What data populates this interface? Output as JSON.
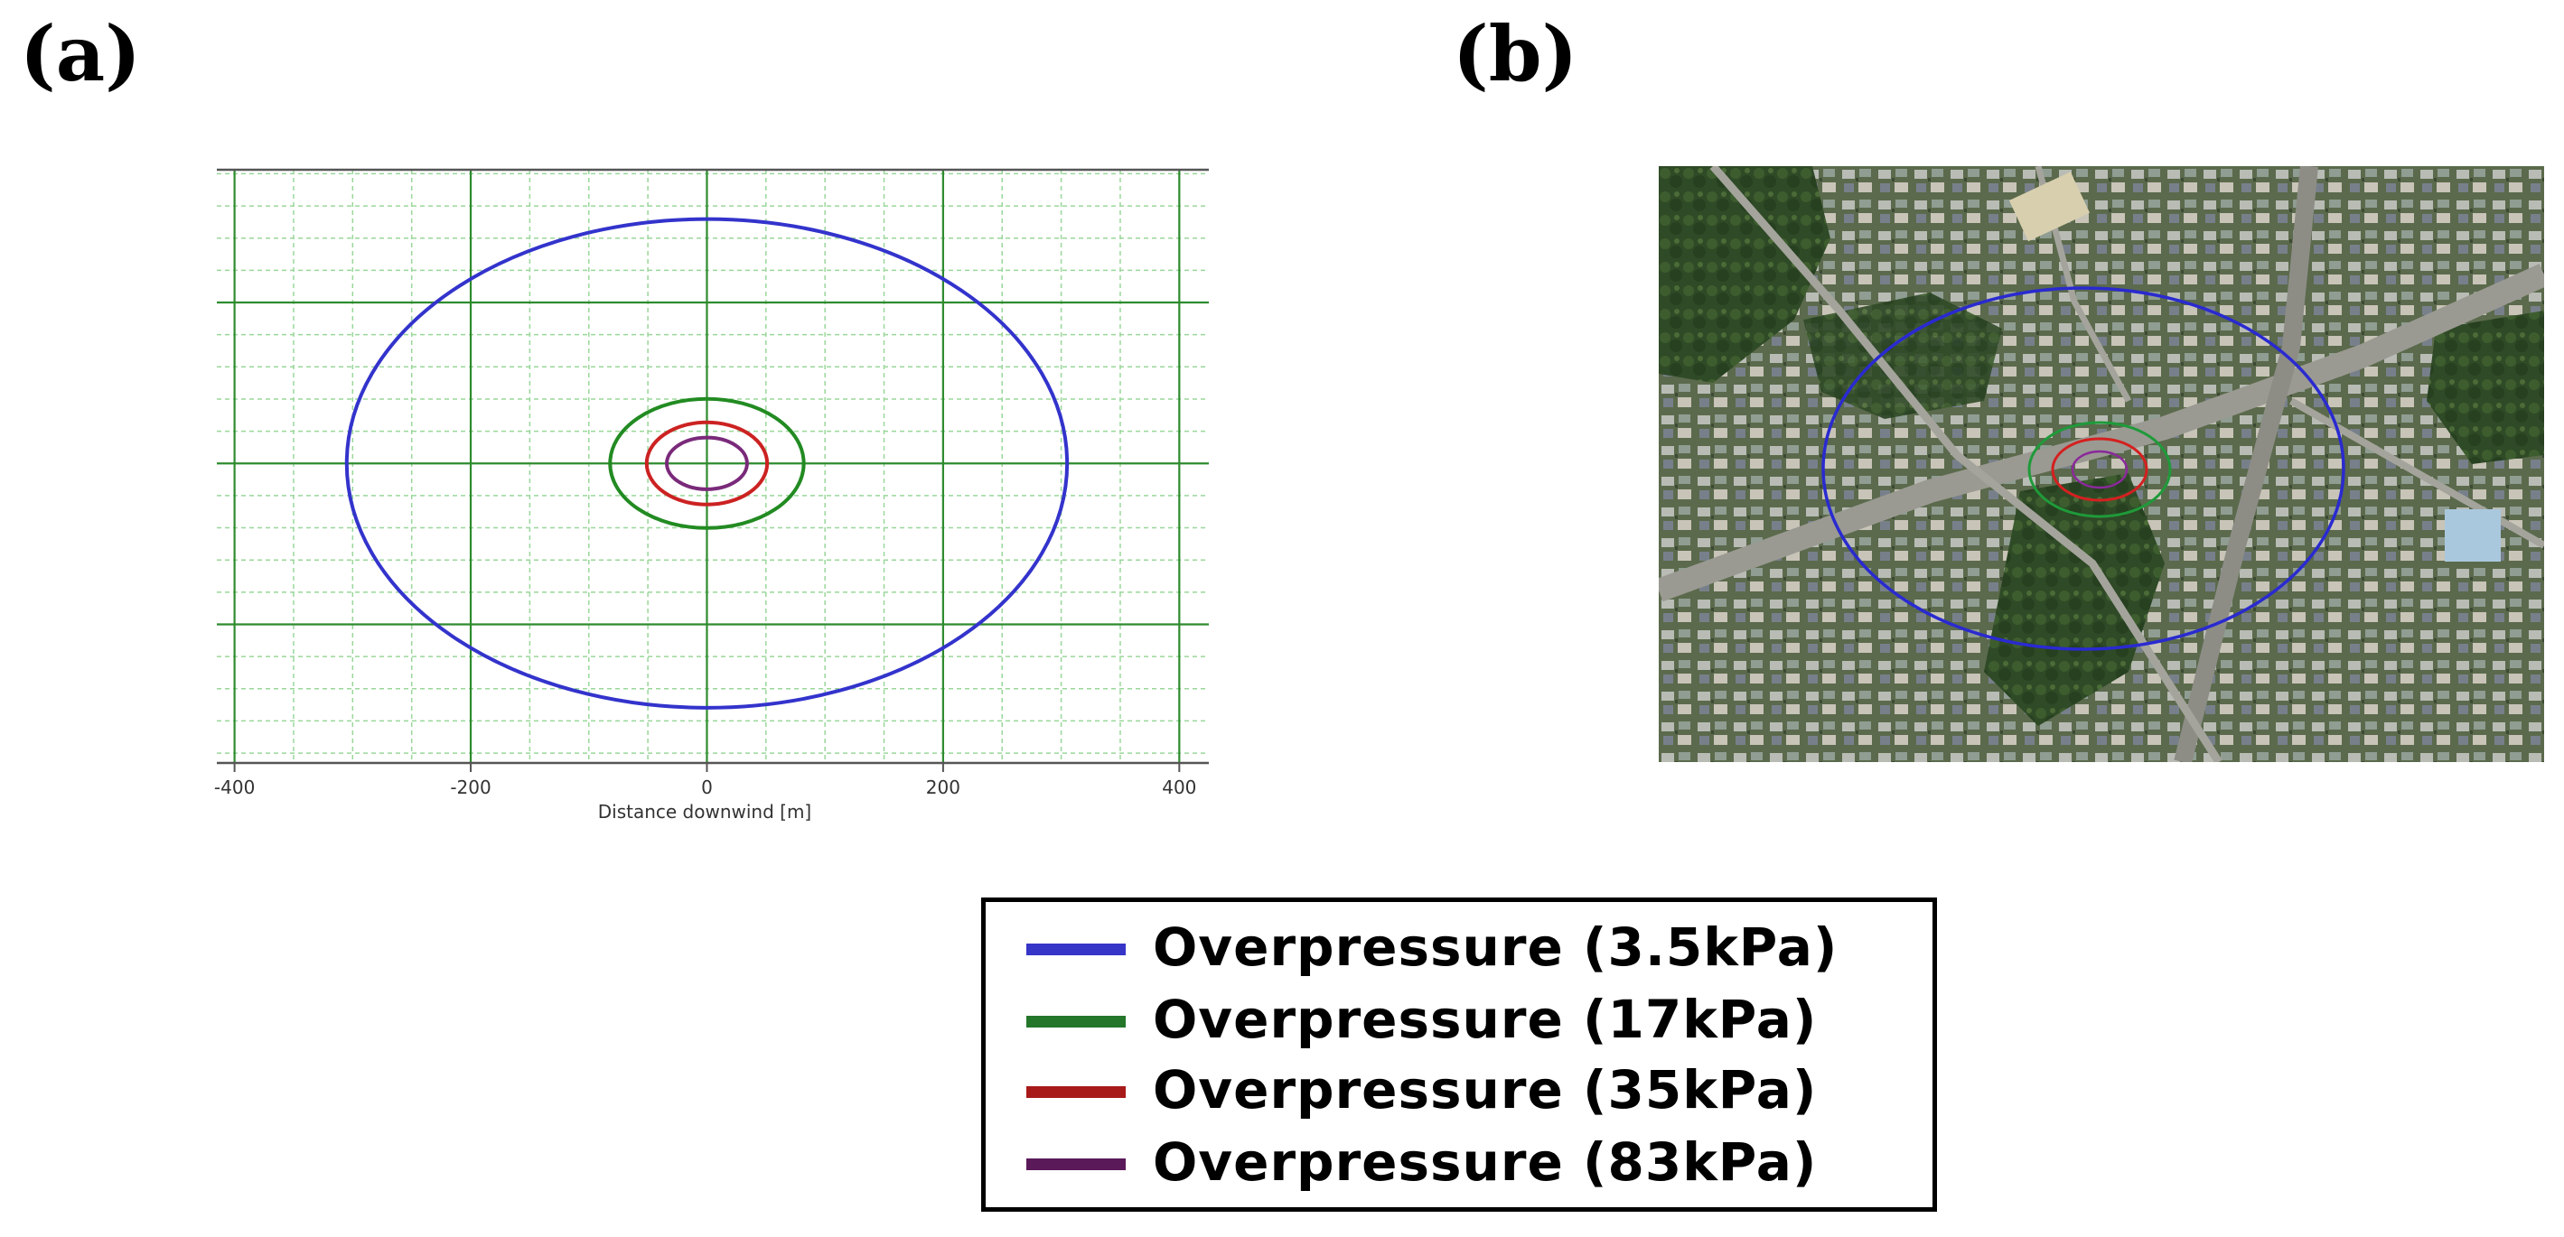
{
  "panel_labels": {
    "a": "(a)",
    "b": "(b)"
  },
  "chart_data": [
    {
      "type": "scatter",
      "panel": "(a)",
      "subtype": "concentric overpressure contours",
      "xlabel": "Distance downwind [m]",
      "ylabel": "",
      "xlim": [
        -415,
        425
      ],
      "ylim": [
        -255,
        250
      ],
      "x_ticks": [
        -400,
        -200,
        0,
        200,
        400
      ],
      "x_tick_labels": [
        "-400",
        "-200",
        "0",
        "200",
        "400"
      ],
      "major_grid_x": [
        -400,
        -200,
        0,
        200,
        400
      ],
      "major_grid_y": [
        -137,
        0,
        137
      ],
      "minor_grid_step": 50,
      "grid": true,
      "series": [
        {
          "name": "Overpressure (3.5kPa)",
          "color": "#3333cc",
          "center": [
            0,
            0
          ],
          "radius_x": 305,
          "radius_y": 208
        },
        {
          "name": "Overpressure (17kPa)",
          "color": "#228b22",
          "center": [
            0,
            0
          ],
          "radius_x": 82,
          "radius_y": 55
        },
        {
          "name": "Overpressure (35kPa)",
          "color": "#cc2222",
          "center": [
            0,
            0
          ],
          "radius_x": 51,
          "radius_y": 35
        },
        {
          "name": "Overpressure (83kPa)",
          "color": "#7a2a7a",
          "center": [
            0,
            0
          ],
          "radius_x": 34,
          "radius_y": 22
        }
      ]
    }
  ],
  "map_overlay": {
    "panel": "(b)",
    "contours": [
      {
        "name": "Overpressure (3.5kPa)",
        "color": "#2a2ad0"
      },
      {
        "name": "Overpressure (17kPa)",
        "color": "#1f9a3a"
      },
      {
        "name": "Overpressure (35kPa)",
        "color": "#d42020"
      },
      {
        "name": "Overpressure (83kPa)",
        "color": "#8a2a9a"
      }
    ]
  },
  "legend": {
    "items": [
      {
        "label": "Overpressure (3.5kPa)",
        "color": "#3535c8"
      },
      {
        "label": "Overpressure (17kPa)",
        "color": "#23762a"
      },
      {
        "label": "Overpressure (35kPa)",
        "color": "#a81a1a"
      },
      {
        "label": "Overpressure (83kPa)",
        "color": "#5a1a5a"
      }
    ]
  }
}
